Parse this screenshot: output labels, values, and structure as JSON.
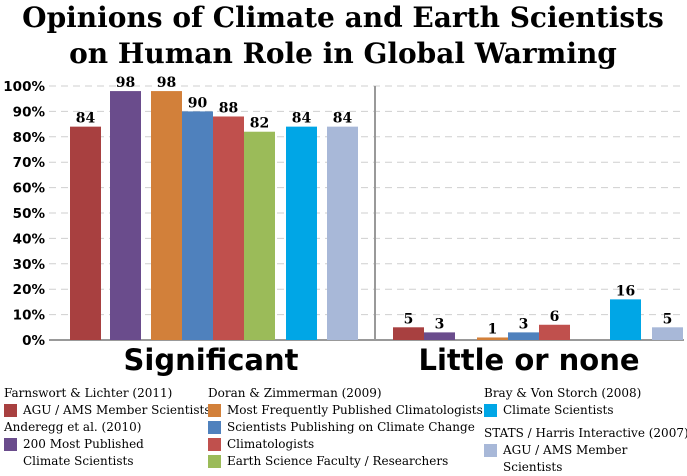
{
  "chart_data": {
    "type": "bar",
    "title": "Opinions of Climate and Earth Scientists\non Human Role in Global Warming",
    "categories": [
      "Significant",
      "Little or none"
    ],
    "yticks": [
      "0%",
      "10%",
      "20%",
      "30%",
      "40%",
      "50%",
      "60%",
      "70%",
      "80%",
      "90%",
      "100%"
    ],
    "ylim": [
      0,
      100
    ],
    "grid": true,
    "series": [
      {
        "name": "AGU / AMS Member Scientists",
        "color": "#a84040",
        "values": [
          84,
          5
        ]
      },
      {
        "name": "200 Most Published\nClimate Scientists",
        "color": "#6a4c8c",
        "values": [
          98,
          3
        ]
      },
      {
        "name": "Most Frequently Published Climatologists",
        "color": "#d2803a",
        "values": [
          98,
          1
        ]
      },
      {
        "name": "Scientists Publishing on Climate Change",
        "color": "#4f81bd",
        "values": [
          90,
          3
        ]
      },
      {
        "name": "Climatologists",
        "color": "#c0504d",
        "values": [
          88,
          6
        ]
      },
      {
        "name": "Earth Science Faculty / Researchers",
        "color": "#9bbb59",
        "values": [
          82,
          null
        ]
      },
      {
        "name": "Climate Scientists",
        "color": "#00a6e6",
        "values": [
          84,
          16
        ]
      },
      {
        "name": "AGU / AMS Member Scientists",
        "color": "#a8b8d8",
        "values": [
          84,
          5
        ]
      }
    ],
    "legend": [
      {
        "source": "Farnswort & Lichter (2011)",
        "series": [
          0
        ]
      },
      {
        "source": "Anderegg et al. (2010)",
        "series": [
          1
        ]
      },
      {
        "source": "Doran & Zimmerman (2009)",
        "series": [
          2,
          3,
          4,
          5
        ]
      },
      {
        "source": "Bray & Von Storch (2008)",
        "series": [
          6
        ]
      },
      {
        "source": "STATS / Harris Interactive (2007)",
        "series": [
          7
        ]
      }
    ]
  }
}
